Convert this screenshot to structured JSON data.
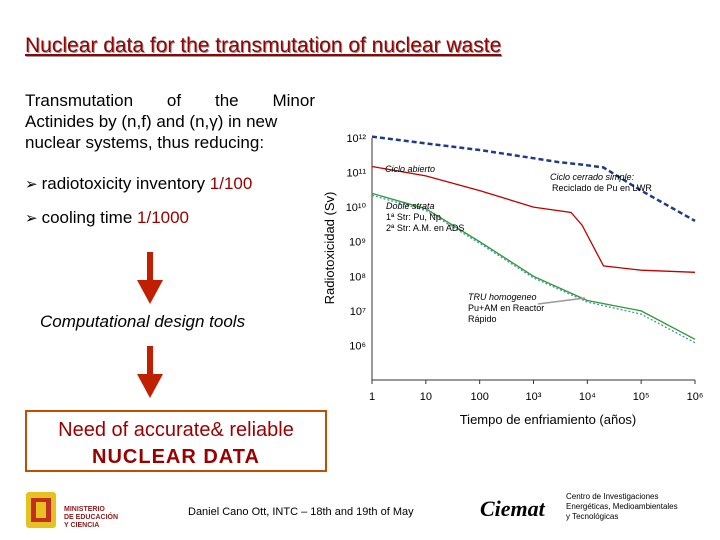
{
  "slide": {
    "title": "Nuclear data for the transmutation of nuclear waste",
    "intro_line1_words": [
      "Transmutation",
      "of",
      "the",
      "Minor"
    ],
    "intro_line2": "Actinides by (n,f) and (n,γ) in new",
    "intro_line3": "nuclear systems, thus reducing:",
    "bullets": [
      {
        "text": "radiotoxicity inventory ",
        "value": "1/100"
      },
      {
        "text": "cooling time ",
        "value": "1/1000"
      }
    ],
    "design_tools": "Computational design tools",
    "need_line1": "Need of accurate& reliable",
    "need_line2": "NUCLEAR DATA",
    "footer": "Daniel Cano Ott, INTC – 18th and 19th of May",
    "ciemat": "Ciemat",
    "ciemat_sub": [
      "Centro de Investigaciones",
      "Energéticas, Medioambientales",
      "y Tecnológicas"
    ],
    "ministry": [
      "MINISTERIO",
      "DE EDUCACIÓN",
      "Y CIENCIA"
    ]
  },
  "colors": {
    "title": "#990000",
    "accent": "#990000",
    "box_border": "#c05000"
  },
  "chart_data": {
    "type": "line",
    "ylabel": "Radiotoxicidad (Sv)",
    "xlabel": "Tiempo de enfriamiento (años)",
    "x_scale": "log",
    "y_scale": "log",
    "xlim": [
      1,
      1000000
    ],
    "ylim": [
      100000,
      1000000000000
    ],
    "x_ticks": [
      "1",
      "10",
      "100",
      "10³",
      "10⁴",
      "10⁵",
      "10⁶"
    ],
    "y_ticks": [
      "10¹²",
      "10¹¹",
      "10¹⁰",
      "10⁹",
      "10⁸",
      "10⁷",
      "10⁶"
    ],
    "annotations": {
      "ciclo_abierto": "Ciclo abierto",
      "ciclo_cerrado": "Ciclo cerrado simple:",
      "reciclado": "Reciclado de Pu en LWR",
      "doble": "Doble strata",
      "doble1": "1ª Str: Pu, Np",
      "doble2": "2ª Str: A.M. en ADS",
      "tru": "TRU homogeneo",
      "tru2": "Pu+AM en Reactor",
      "tru3": "Rápido"
    },
    "series": [
      {
        "color": "#1f3a8a",
        "style": "dashed",
        "x": [
          1,
          10,
          100,
          1000,
          3000,
          8000,
          20000,
          100000,
          1000000
        ],
        "y": [
          1100000000000.0,
          700000000000.0,
          450000000000.0,
          260000000000.0,
          200000000000.0,
          170000000000.0,
          140000000000.0,
          30000000000.0,
          4000000000.0
        ]
      },
      {
        "color": "#c00000",
        "style": "solid",
        "x": [
          1,
          10,
          100,
          1000,
          5000,
          8000,
          20000,
          100000,
          1000000
        ],
        "y": [
          150000000000.0,
          80000000000.0,
          30000000000.0,
          10000000000.0,
          7000000000.0,
          3000000000.0,
          200000000.0,
          150000000.0,
          130000000.0
        ]
      },
      {
        "color": "#2a9a2a",
        "style": "solid",
        "x": [
          1,
          10,
          100,
          1000,
          10000,
          100000,
          1000000
        ],
        "y": [
          25000000000.0,
          9000000000.0,
          1000000000.0,
          100000000.0,
          20000000.0,
          10000000.0,
          1500000.0
        ]
      },
      {
        "color": "#4a8ad0",
        "style": "dotted",
        "x": [
          1,
          10,
          100,
          1000,
          10000,
          100000,
          1000000
        ],
        "y": [
          22000000000.0,
          8000000000.0,
          900000000.0,
          90000000.0,
          18000000.0,
          8000000.0,
          1200000.0
        ]
      }
    ]
  }
}
